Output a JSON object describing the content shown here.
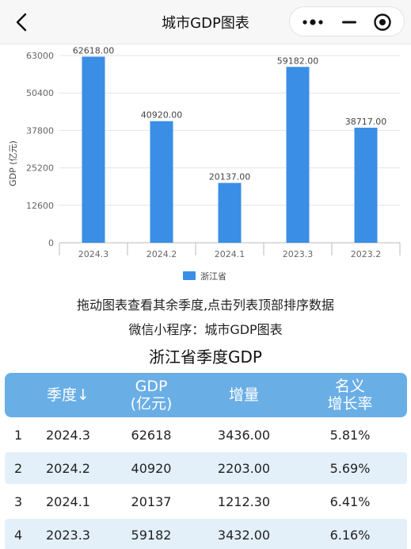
{
  "header": {
    "title": "城市GDP图表"
  },
  "chart_data": {
    "type": "bar",
    "categories": [
      "2024.3",
      "2024.2",
      "2024.1",
      "2023.3",
      "2023.2"
    ],
    "series": [
      {
        "name": "浙江省",
        "values": [
          62618.0,
          40920.0,
          20137.0,
          59182.0,
          38717.0
        ],
        "color": "#3a8ee6"
      }
    ],
    "value_labels": [
      "62618.00",
      "40920.00",
      "20137.00",
      "59182.00",
      "38717.00"
    ],
    "yticks": [
      "63000",
      "50400",
      "37800",
      "25200",
      "12600",
      "0"
    ],
    "ytick_values": [
      63000,
      50400,
      37800,
      25200,
      12600,
      0
    ],
    "ylim": [
      0,
      63000
    ],
    "ylabel": "GDP (亿元)",
    "xlabel": "",
    "grid": true,
    "legend_position": "bottom"
  },
  "hints": {
    "drag": "拖动图表查看其余季度,点击列表顶部排序数据",
    "mini_program": "微信小程序：城市GDP图表"
  },
  "table": {
    "title": "浙江省季度GDP",
    "headers": {
      "quarter": "季度↓",
      "gdp_line1": "GDP",
      "gdp_line2": "(亿元)",
      "increase": "增量",
      "growth_line1": "名义",
      "growth_line2": "增长率"
    },
    "rows": [
      {
        "rank": "1",
        "quarter": "2024.3",
        "gdp": "62618",
        "increase": "3436.00",
        "growth": "5.81%"
      },
      {
        "rank": "2",
        "quarter": "2024.2",
        "gdp": "40920",
        "increase": "2203.00",
        "growth": "5.69%"
      },
      {
        "rank": "3",
        "quarter": "2024.1",
        "gdp": "20137",
        "increase": "1212.30",
        "growth": "6.41%"
      },
      {
        "rank": "4",
        "quarter": "2023.3",
        "gdp": "59182",
        "increase": "3432.00",
        "growth": "6.16%"
      }
    ]
  },
  "colors": {
    "bar": "#3a8ee6",
    "table_header": "#6aaee6",
    "row_alt": "#e3f0fa"
  }
}
